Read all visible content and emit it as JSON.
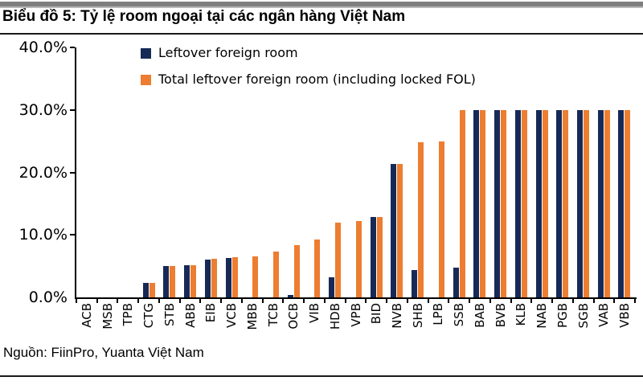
{
  "page": {
    "title": "Biểu đồ 5: Tỷ lệ room ngoại tại các ngân hàng Việt Nam",
    "source": "Nguồn: FiinPro, Yuanta Việt Nam"
  },
  "colors": {
    "navy": "#172A57",
    "orange": "#ED7D31",
    "axis": "#000000",
    "top_bar_gray": "#7f7f7f"
  },
  "chart_data": {
    "type": "bar",
    "title": "Tỷ lệ room ngoại tại các ngân hàng Việt Nam",
    "categories": [
      "ACB",
      "MSB",
      "TPB",
      "CTG",
      "STB",
      "ABB",
      "EIB",
      "VCB",
      "MBB",
      "TCB",
      "OCB",
      "VIB",
      "HDB",
      "VPB",
      "BID",
      "NVB",
      "SHB",
      "LPB",
      "SSB",
      "BAB",
      "BVB",
      "KLB",
      "NAB",
      "PGB",
      "SGB",
      "VAB",
      "VBB"
    ],
    "series": [
      {
        "name": "Leftover foreign room",
        "color": "#172A57",
        "values": [
          0,
          0,
          0,
          2.3,
          5.0,
          5.2,
          6.1,
          6.3,
          0,
          0,
          0.4,
          0,
          3.2,
          0,
          12.8,
          21.3,
          4.4,
          0,
          4.7,
          30,
          30,
          30,
          30,
          30,
          30,
          30,
          30
        ]
      },
      {
        "name": "Total leftover foreign room (including locked FOL)",
        "color": "#ED7D31",
        "values": [
          0,
          0,
          0,
          2.3,
          5.0,
          5.2,
          6.2,
          6.4,
          6.6,
          7.3,
          8.4,
          9.3,
          11.9,
          12.2,
          12.9,
          21.4,
          24.8,
          25.0,
          30,
          30,
          30,
          30,
          30,
          30,
          30,
          30,
          30
        ]
      }
    ],
    "xlabel": "",
    "ylabel": "",
    "ylim": [
      0,
      40
    ],
    "yticks": [
      "0.0%",
      "10.0%",
      "20.0%",
      "30.0%",
      "40.0%"
    ],
    "grid": false,
    "legend_position": "top-left-inside",
    "x_label_rotation": -90
  }
}
